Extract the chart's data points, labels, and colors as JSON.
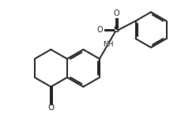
{
  "bg_color": "#ffffff",
  "line_color": "#1a1a1a",
  "line_width": 1.4,
  "figsize": [
    2.29,
    1.78
  ],
  "dpi": 100,
  "xlim": [
    0,
    9.5
  ],
  "ylim": [
    0,
    7.4
  ]
}
